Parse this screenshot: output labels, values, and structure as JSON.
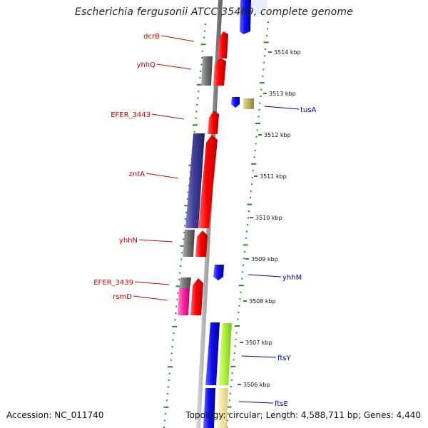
{
  "title": "Escherichia fergusonii ATCC 35469, complete genome",
  "footer": {
    "accession": "Accession: NC_011740",
    "topology": "Topology: circular; Length: 4,588,711 bp; Genes: 4,440"
  },
  "ticks": [
    "3514 kbp",
    "3513 kbp",
    "3512 kbp",
    "3511 kbp",
    "3510 kbp",
    "3509 kbp",
    "3508 kbp",
    "3507 kbp",
    "3506 kbp"
  ],
  "genes_left": [
    "dcrB",
    "yhhQ",
    "EFER_3443",
    "zntA",
    "yhhN",
    "EFER_3439",
    "rsmD"
  ],
  "genes_right": [
    "tusA",
    "yhhM",
    "ftsY",
    "ftsE"
  ],
  "colors": {
    "left_label": "#cc0000",
    "right_label": "#0000aa",
    "cds_forward": "#ff0000",
    "cds_reverse": "#0000ee",
    "backbone": "#999999",
    "dots": "#228b22"
  }
}
